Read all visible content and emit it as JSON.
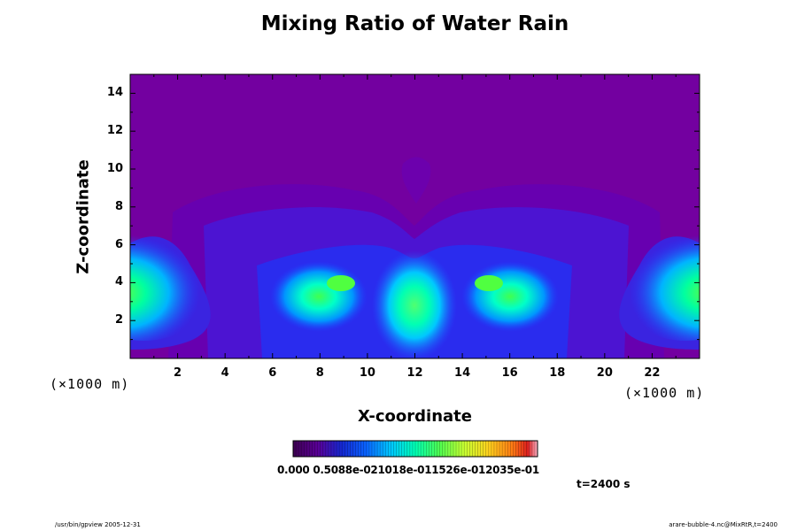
{
  "chart_data": {
    "type": "heatmap",
    "title": "Mixing Ratio of Water Rain",
    "xlabel": "X-coordinate",
    "ylabel": "Z-coordinate",
    "x_unit_label": "(×1000 m)",
    "y_unit_label": "(×1000 m)",
    "xlim": [
      0,
      24
    ],
    "ylim": [
      0,
      15
    ],
    "xticks": [
      "2",
      "4",
      "6",
      "8",
      "10",
      "12",
      "14",
      "16",
      "18",
      "20",
      "22"
    ],
    "yticks": [
      "2",
      "4",
      "6",
      "8",
      "10",
      "12",
      "14"
    ],
    "colorbar_labels_text": "0.000 0.5088e-021018e-011526e-012035e-01",
    "colorbar_colors": [
      "#3c0050",
      "#5a0096",
      "#1428d2",
      "#0a64ff",
      "#00c8ff",
      "#00ffb4",
      "#50ff50",
      "#c8ff32",
      "#ffd21e",
      "#ff7814",
      "#dc1e1e",
      "#ffb4c8"
    ],
    "background_color": "#7300a0",
    "annotation": "t=2400 s",
    "footer_left": "/usr/bin/gpview 2005-12-31",
    "footer_right": "arare-bubble-4.nc@MixRtR,t=2400"
  }
}
